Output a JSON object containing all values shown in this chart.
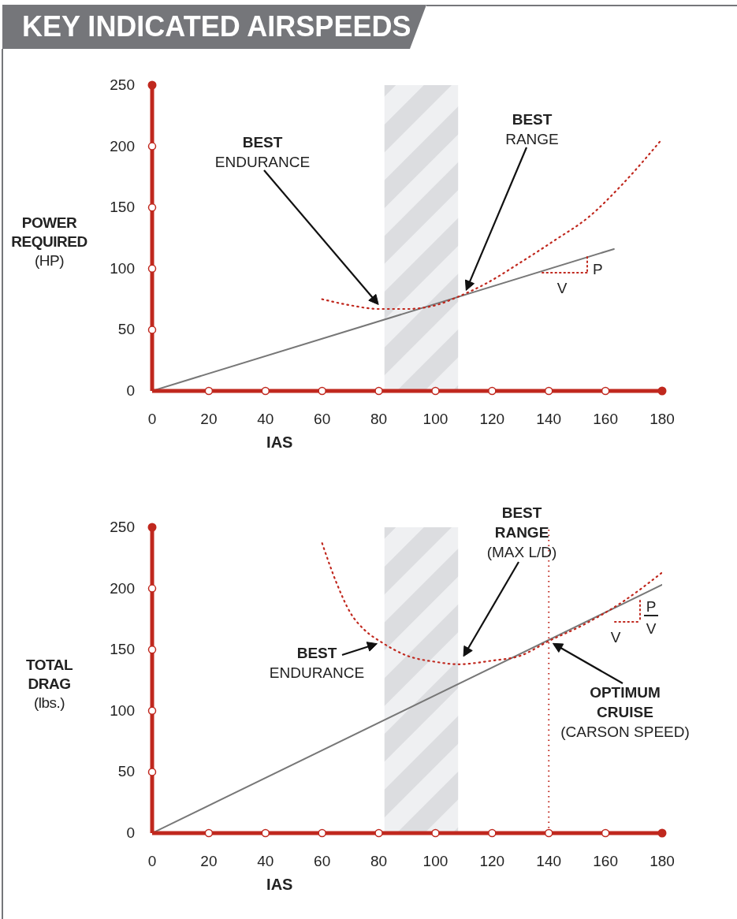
{
  "chart_data": [
    {
      "type": "line",
      "title": "KEY INDICATED AIRSPEEDS",
      "ylabel": "POWER\nREQUIRED\n(HP)",
      "xlabel": "IAS",
      "xlim": [
        0,
        180
      ],
      "xticks": [
        0,
        20,
        40,
        60,
        80,
        100,
        120,
        140,
        160,
        180
      ],
      "ylim": [
        0,
        250
      ],
      "yticks": [
        0,
        50,
        100,
        150,
        200,
        250
      ],
      "marker": "none",
      "series": [
        {
          "type": "line",
          "color": "#777777",
          "line_style": "solid",
          "x": [
            0,
            163
          ],
          "values": [
            0,
            116
          ]
        },
        {
          "type": "line",
          "color": "#c0281e",
          "line_style": "dotted",
          "x": [
            60,
            70,
            80,
            90,
            100,
            108,
            118,
            130,
            142,
            154,
            166,
            180
          ],
          "values": [
            75,
            70,
            67,
            67,
            70,
            77,
            88,
            105,
            123,
            142,
            169,
            206
          ]
        }
      ],
      "bands": [
        {
          "axis": "x",
          "from": 82,
          "to": 108,
          "color": "#dcdde0"
        }
      ],
      "annotations": [
        "BEST\nENDURANCE",
        "BEST\nRANGE",
        "P",
        "V"
      ]
    },
    {
      "type": "line",
      "ylabel": "TOTAL\nDRAG\n(lbs.)",
      "xlabel": "IAS",
      "xlim": [
        0,
        180
      ],
      "xticks": [
        0,
        20,
        40,
        60,
        80,
        100,
        120,
        140,
        160,
        180
      ],
      "ylim": [
        0,
        250
      ],
      "yticks": [
        0,
        50,
        100,
        150,
        200,
        250
      ],
      "marker": "none",
      "series": [
        {
          "type": "line",
          "color": "#777777",
          "line_style": "solid",
          "x": [
            0,
            180
          ],
          "values": [
            0,
            203
          ]
        },
        {
          "type": "line",
          "color": "#c0281e",
          "line_style": "dotted",
          "x": [
            60,
            65,
            70,
            75,
            81,
            90,
            100,
            108,
            120,
            130,
            140,
            152,
            166,
            180
          ],
          "values": [
            237,
            205,
            180,
            166,
            156,
            145,
            140,
            138,
            141,
            145,
            157,
            170,
            189,
            213
          ]
        }
      ],
      "bands": [
        {
          "axis": "x",
          "from": 82,
          "to": 108,
          "color": "#dcdde0"
        }
      ],
      "ref_lines": [
        {
          "axis": "x",
          "value": 140,
          "color": "#c0281e",
          "line_style": "dotted"
        }
      ],
      "annotations": [
        {
          "text": "BEST\nENDURANCE",
          "x": 81,
          "y": 156
        },
        "BEST\nRANGE\n(MAX L/D)",
        {
          "text": "OPTIMUM\nCRUISE\n(CARSON SPEED)",
          "x": 140,
          "y": 157
        },
        "P",
        "V",
        "V"
      ]
    }
  ]
}
